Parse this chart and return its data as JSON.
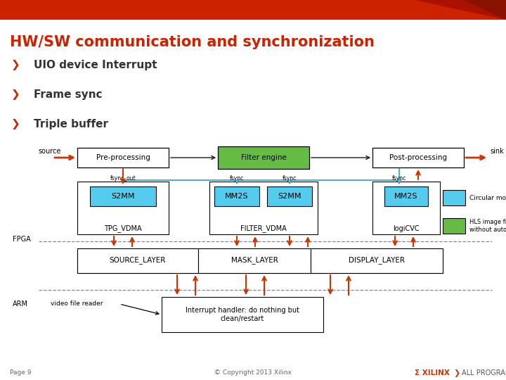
{
  "title": "HW/SW communication and synchronization",
  "title_color": "#cc2200",
  "header_bar_color": "#cc2200",
  "bg_color": "#ffffff",
  "bullet_points": [
    "UIO device Interrupt",
    "Frame sync",
    "Triple buffer"
  ],
  "bullet_color": "#cc2200",
  "bullet_text_color": "#333333",
  "red": "#cc3300",
  "blue": "#3399cc",
  "cyan": "#55ccee",
  "green_box": "#66bb44",
  "black": "#000000",
  "gray": "#888888",
  "dark_text": "#444444"
}
